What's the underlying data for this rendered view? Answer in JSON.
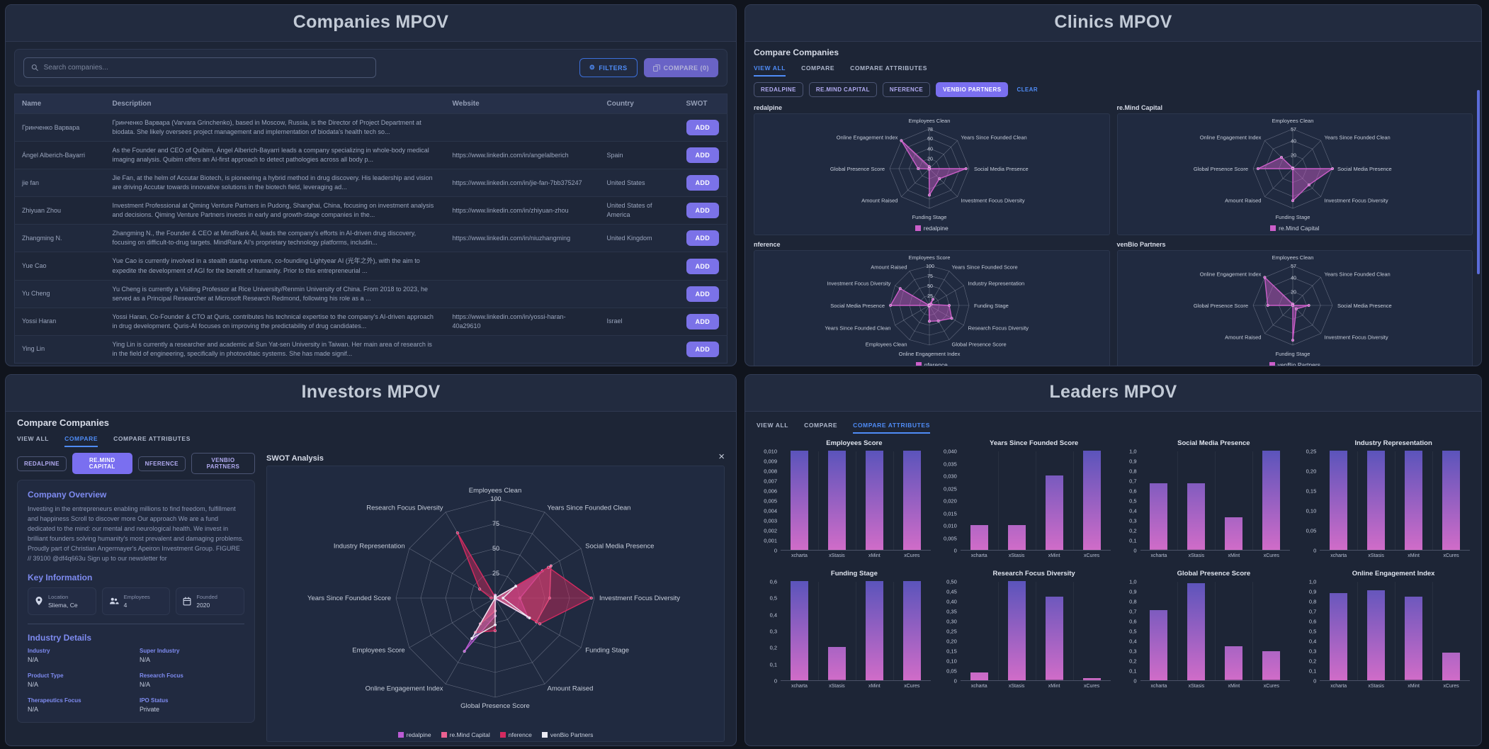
{
  "theme": {
    "accent_blue": "#4f8cf7",
    "accent_purple": "#7b72e8",
    "chip_purple": "#7a6ff0"
  },
  "panels": {
    "companies": {
      "title": "Companies MPOV",
      "search_placeholder": "Search companies...",
      "filters_label": "FILTERS",
      "compare_label": "COMPARE (0)",
      "table": {
        "headers": [
          "Name",
          "Description",
          "Website",
          "Country",
          "SWOT"
        ],
        "add_label": "ADD",
        "rows": [
          {
            "name": "Гринченко Варвара",
            "description": "Гринченко Варвара (Varvara Grinchenko), based in Moscow, Russia, is the Director of Project Department at biodata. She likely oversees project management and implementation of biodata's health tech so...",
            "website": "",
            "country": ""
          },
          {
            "name": "Ángel Alberich-Bayarri",
            "description": "As the Founder and CEO of Quibim, Ángel Alberich-Bayarri leads a company specializing in whole-body medical imaging analysis. Quibim offers an AI-first approach to detect pathologies across all body p...",
            "website": "https://www.linkedin.com/in/angelalberich",
            "country": "Spain"
          },
          {
            "name": "jie fan",
            "description": "Jie Fan, at the helm of Accutar Biotech, is pioneering a hybrid method in drug discovery. His leadership and vision are driving Accutar towards innovative solutions in the biotech field, leveraging ad...",
            "website": "https://www.linkedin.com/in/jie-fan-7bb375247",
            "country": "United States"
          },
          {
            "name": "Zhiyuan Zhou",
            "description": "Investment Professional at Qiming Venture Partners in Pudong, Shanghai, China, focusing on investment analysis and decisions. Qiming Venture Partners invests in early and growth-stage companies in the...",
            "website": "https://www.linkedin.com/in/zhiyuan-zhou",
            "country": "United States of America"
          },
          {
            "name": "Zhangming N.",
            "description": "Zhangming N., the Founder & CEO at MindRank AI, leads the company's efforts in AI-driven drug discovery, focusing on difficult-to-drug targets. MindRank AI's proprietary technology platforms, includin...",
            "website": "https://www.linkedin.com/in/niuzhangming",
            "country": "United Kingdom"
          },
          {
            "name": "Yue Cao",
            "description": "Yue Cao is currently involved in a stealth startup venture, co-founding Lightyear AI (光年之外), with the aim to expedite the development of AGI for the benefit of humanity. Prior to this entrepreneurial ...",
            "website": "",
            "country": ""
          },
          {
            "name": "Yu Cheng",
            "description": "Yu Cheng is currently a Visiting Professor at Rice University/Renmin University of China. From 2018 to 2023, he served as a Principal Researcher at Microsoft Research Redmond, following his role as a ...",
            "website": "",
            "country": ""
          },
          {
            "name": "Yossi Haran",
            "description": "Yossi Haran, Co-Founder & CTO at Quris, contributes his technical expertise to the company's AI-driven approach in drug development. Quris-AI focuses on improving the predictability of drug candidates...",
            "website": "https://www.linkedin.com/in/yossi-haran-40a29610",
            "country": "Israel"
          },
          {
            "name": "Ying Lin",
            "description": "Ying Lin is currently a researcher and academic at Sun Yat-sen University in Taiwan. Her main area of research is in the field of engineering, specifically in photovoltaic systems. She has made signif...",
            "website": "",
            "country": ""
          }
        ]
      }
    },
    "clinics": {
      "title": "Clinics MPOV",
      "heading": "Compare Companies",
      "tabs": [
        "VIEW ALL",
        "COMPARE",
        "COMPARE ATTRIBUTES"
      ],
      "chips": [
        "REDALPINE",
        "RE.MIND CAPITAL",
        "NFERENCE",
        "VENBIO PARTNERS"
      ],
      "clear_label": "CLEAR"
    },
    "investors": {
      "title": "Investors MPOV",
      "heading": "Compare Companies",
      "close_label": "×",
      "tabs": [
        "VIEW ALL",
        "COMPARE",
        "COMPARE ATTRIBUTES"
      ],
      "chips": [
        "REDALPINE",
        "RE.MIND CAPITAL",
        "NFERENCE",
        "VENBIO PARTNERS"
      ],
      "overview": {
        "title": "Company Overview",
        "text": "Investing in the entrepreneurs enabling millions to find freedom, fulfillment and happiness Scroll to discover more Our approach We are a fund dedicated to the mind: our mental and neurological health. We invest in brilliant founders solving humanity's most prevalent and damaging problems. Proudly part of Christian Angermayer's Apeiron Investment Group. FIGURE // 39100 @df4q663u Sign up to our newsletter for"
      },
      "key_information": {
        "title": "Key Information",
        "items": [
          {
            "label": "Location",
            "value": "Sliema, Ce"
          },
          {
            "label": "Employees",
            "value": "4"
          },
          {
            "label": "Founded",
            "value": "2020"
          }
        ]
      },
      "industry": {
        "title": "Industry Details",
        "fields": [
          {
            "label": "Industry",
            "value": "N/A"
          },
          {
            "label": "Super Industry",
            "value": "N/A"
          },
          {
            "label": "Product Type",
            "value": "N/A"
          },
          {
            "label": "Research Focus",
            "value": "N/A"
          },
          {
            "label": "Therapeutics Focus",
            "value": "N/A"
          },
          {
            "label": "IPO Status",
            "value": "Private"
          }
        ]
      },
      "swot_title": "SWOT Analysis"
    },
    "leaders": {
      "title": "Leaders MPOV",
      "tabs": [
        "VIEW ALL",
        "COMPARE",
        "COMPARE ATTRIBUTES"
      ]
    }
  },
  "chart_data": {
    "clinics_radars": [
      {
        "type": "radar",
        "label": "redalpine",
        "axes": [
          "Employees Clean",
          "Years Since Founded Clean",
          "Social Media Presence",
          "Investment Focus Diversity",
          "Funding Stage",
          "Amount Raised",
          "Global Presence Score",
          "Online Engagement Index"
        ],
        "max": 78,
        "ticks": [
          20,
          40,
          60,
          78
        ],
        "series": [
          {
            "name": "redalpine",
            "color": "#cb5ec9",
            "values": [
              4,
              0,
              72,
              28,
              52,
              1,
              22,
              78
            ]
          }
        ]
      },
      {
        "type": "radar",
        "label": "re.Mind Capital",
        "axes": [
          "Employees Clean",
          "Years Since Founded Clean",
          "Social Media Presence",
          "Investment Focus Diversity",
          "Funding Stage",
          "Amount Raised",
          "Global Presence Score",
          "Online Engagement Index"
        ],
        "max": 57,
        "ticks": [
          20,
          40,
          57
        ],
        "series": [
          {
            "name": "re.Mind Capital",
            "color": "#cb5ec9",
            "values": [
              1,
              0,
              57,
              33,
              46,
              0,
              50,
              23
            ]
          }
        ]
      },
      {
        "type": "radar",
        "label": "nference",
        "axes": [
          "Employees Score",
          "Years Since Founded Score",
          "Industry Representation",
          "Funding Stage",
          "Research Focus Diversity",
          "Global Presence Score",
          "Online Engagement Index",
          "Employees Clean",
          "Years Since Founded Clean",
          "Social Media Presence",
          "Investment Focus Diversity",
          "Amount Raised"
        ],
        "max": 100,
        "ticks": [
          25,
          50,
          75,
          100
        ],
        "series": [
          {
            "name": "nference",
            "color": "#cb5ec9",
            "values": [
              2,
              18,
              5,
              50,
              65,
              45,
              40,
              2,
              0,
              98,
              85,
              0
            ]
          }
        ]
      },
      {
        "type": "radar",
        "label": "venBio Partners",
        "axes": [
          "Employees Clean",
          "Years Since Founded Clean",
          "Social Media Presence",
          "Investment Focus Diversity",
          "Funding Stage",
          "Amount Raised",
          "Global Presence Score",
          "Online Engagement Index"
        ],
        "max": 57,
        "ticks": [
          20,
          40,
          57
        ],
        "series": [
          {
            "name": "venBio Partners",
            "color": "#cb5ec9",
            "values": [
              2,
              0,
              23,
              7,
              50,
              0,
              36,
              57
            ]
          }
        ]
      }
    ],
    "swot_radar": {
      "type": "radar",
      "label": "SWOT Analysis",
      "axes": [
        "Employees Clean",
        "Years Since Founded Clean",
        "Social Media Presence",
        "Investment Focus Diversity",
        "Funding Stage",
        "Amount Raised",
        "Global Presence Score",
        "Online Engagement Index",
        "Employees Score",
        "Years Since Founded Score",
        "Industry Representation",
        "Research Focus Diversity"
      ],
      "max": 100,
      "ticks": [
        25,
        50,
        75,
        100
      ],
      "series": [
        {
          "name": "redalpine",
          "color": "#bb5bd4",
          "values": [
            3,
            0,
            55,
            25,
            38,
            1,
            18,
            62,
            0,
            0,
            0,
            0
          ]
        },
        {
          "name": "re.Mind Capital",
          "color": "#ea6191",
          "values": [
            1,
            0,
            65,
            55,
            48,
            0,
            13,
            30,
            0,
            0,
            0,
            0
          ]
        },
        {
          "name": "nference",
          "color": "#d42a60",
          "values": [
            1,
            0,
            62,
            97,
            52,
            0,
            33,
            40,
            0,
            4,
            18,
            76
          ]
        },
        {
          "name": "venBio Partners",
          "color": "#e9e9f2",
          "values": [
            2,
            0,
            24,
            8,
            40,
            0,
            27,
            47,
            0,
            0,
            0,
            0
          ]
        }
      ]
    },
    "leaders_bars": [
      {
        "type": "bar",
        "title": "Employees Score",
        "categories": [
          "xcharta",
          "xStasis",
          "xMint",
          "xCures"
        ],
        "values": [
          0.01,
          0.01,
          0.01,
          0.01
        ],
        "ylim": [
          0,
          0.01
        ],
        "ystep": 0.001,
        "decimals": 3
      },
      {
        "type": "bar",
        "title": "Years Since Founded Score",
        "categories": [
          "xcharta",
          "xStasis",
          "xMint",
          "xCures"
        ],
        "values": [
          0.01,
          0.01,
          0.03,
          0.04
        ],
        "ylim": [
          0,
          0.04
        ],
        "ystep": 0.005,
        "decimals": 3
      },
      {
        "type": "bar",
        "title": "Social Media Presence",
        "categories": [
          "xcharta",
          "xStasis",
          "xMint",
          "xCures"
        ],
        "values": [
          0.67,
          0.67,
          0.33,
          1.0
        ],
        "ylim": [
          0,
          1.0
        ],
        "ystep": 0.1,
        "decimals": 1
      },
      {
        "type": "bar",
        "title": "Industry Representation",
        "categories": [
          "xcharta",
          "xStasis",
          "xMint",
          "xCures"
        ],
        "values": [
          0.25,
          0.25,
          0.25,
          0.25
        ],
        "ylim": [
          0,
          0.25
        ],
        "ystep": 0.05,
        "decimals": 2
      },
      {
        "type": "bar",
        "title": "Funding Stage",
        "categories": [
          "xcharta",
          "xStasis",
          "xMint",
          "xCures"
        ],
        "values": [
          0.6,
          0.2,
          0.6,
          0.6
        ],
        "ylim": [
          0,
          0.6
        ],
        "ystep": 0.1,
        "decimals": 1
      },
      {
        "type": "bar",
        "title": "Research Focus Diversity",
        "categories": [
          "xcharta",
          "xStasis",
          "xMint",
          "xCures"
        ],
        "values": [
          0.04,
          0.5,
          0.42,
          0.01
        ],
        "ylim": [
          0,
          0.5
        ],
        "ystep": 0.05,
        "decimals": 2
      },
      {
        "type": "bar",
        "title": "Global Presence Score",
        "categories": [
          "xcharta",
          "xStasis",
          "xMint",
          "xCures"
        ],
        "values": [
          0.71,
          0.98,
          0.34,
          0.29
        ],
        "ylim": [
          0,
          1.0
        ],
        "ystep": 0.1,
        "decimals": 1
      },
      {
        "type": "bar",
        "title": "Online Engagement Index",
        "categories": [
          "xcharta",
          "xStasis",
          "xMint",
          "xCures"
        ],
        "values": [
          0.88,
          0.91,
          0.84,
          0.28
        ],
        "ylim": [
          0,
          1.0
        ],
        "ystep": 0.1,
        "decimals": 1
      }
    ],
    "bar_gradient": {
      "top": "#5b54bb",
      "bottom": "#d06cc8"
    }
  }
}
